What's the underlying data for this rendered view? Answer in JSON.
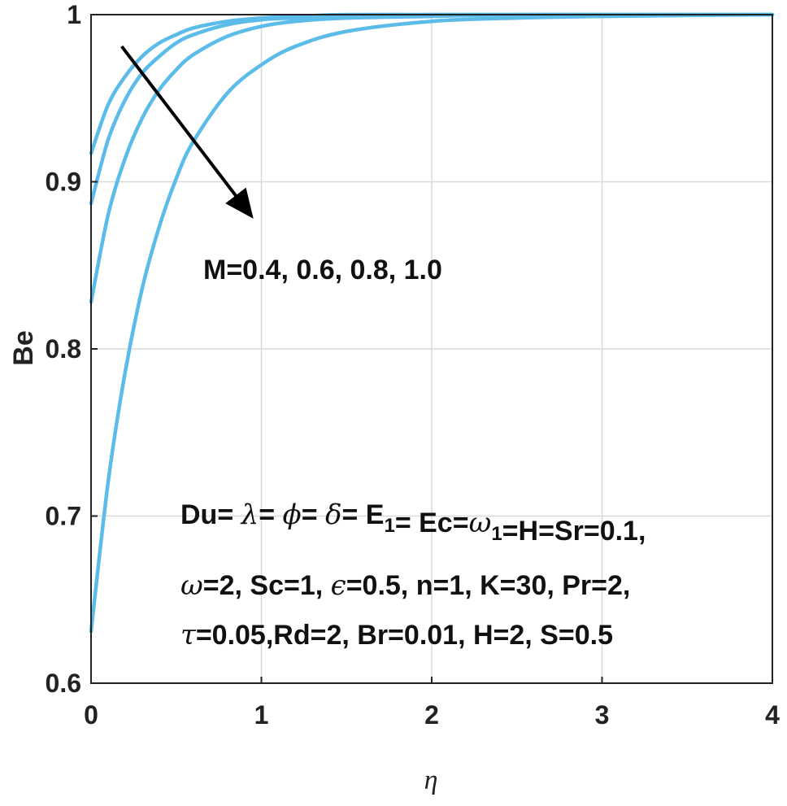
{
  "colors": {
    "curve": "#5bbcea",
    "grid": "#d9d9d9",
    "axis": "#222222",
    "arrow": "#000000"
  },
  "chart_data": {
    "type": "line",
    "title": "",
    "xlabel": "η",
    "ylabel": "Be",
    "xlim": [
      0,
      4
    ],
    "ylim": [
      0.6,
      1.0
    ],
    "xticks": [
      0,
      1,
      2,
      3,
      4
    ],
    "xtick_labels": [
      "0",
      "1",
      "2",
      "3",
      "4"
    ],
    "yticks": [
      0.6,
      0.7,
      0.8,
      0.9,
      1.0
    ],
    "ytick_labels": [
      "0.6",
      "0.7",
      "0.8",
      "0.9",
      "1"
    ],
    "grid": true,
    "x": [
      0,
      0.1,
      0.2,
      0.3,
      0.4,
      0.5,
      0.6,
      0.8,
      1.0,
      1.2,
      1.5,
      2.0,
      2.5,
      3.0,
      4.0
    ],
    "series": [
      {
        "values": [
          0.917,
          0.946,
          0.963,
          0.975,
          0.983,
          0.988,
          0.992,
          0.996,
          0.998,
          0.999,
          1.0,
          1.0,
          1.0,
          1.0,
          1.0
        ]
      },
      {
        "values": [
          0.887,
          0.925,
          0.949,
          0.965,
          0.975,
          0.983,
          0.988,
          0.994,
          0.997,
          0.998,
          0.999,
          1.0,
          1.0,
          1.0,
          1.0
        ]
      },
      {
        "values": [
          0.828,
          0.88,
          0.914,
          0.938,
          0.955,
          0.967,
          0.976,
          0.987,
          0.993,
          0.996,
          0.998,
          0.999,
          1.0,
          1.0,
          1.0
        ]
      },
      {
        "values": [
          0.631,
          0.72,
          0.786,
          0.836,
          0.873,
          0.902,
          0.924,
          0.953,
          0.97,
          0.981,
          0.99,
          0.996,
          0.998,
          0.999,
          1.0
        ]
      }
    ],
    "annotations": {
      "parameter_label": "M=0.4, 0.6, 0.8, 1.0",
      "arrow": {
        "from": [
          0.18,
          0.981
        ],
        "to": [
          0.93,
          0.881
        ]
      },
      "params_line1": [
        {
          "t": "Du= ",
          "s": "n"
        },
        {
          "t": "λ",
          "s": "i"
        },
        {
          "t": "= ",
          "s": "n"
        },
        {
          "t": "ϕ",
          "s": "i"
        },
        {
          "t": "= ",
          "s": "n"
        },
        {
          "t": "δ",
          "s": "i"
        },
        {
          "t": "= E",
          "s": "n"
        },
        {
          "t": "1",
          "s": "sub"
        },
        {
          "t": "= Ec=",
          "s": "n"
        },
        {
          "t": "ω",
          "s": "i"
        },
        {
          "t": "1",
          "s": "sub"
        },
        {
          "t": "=H=Sr=0.1,",
          "s": "n"
        }
      ],
      "params_line2": [
        {
          "t": "ω",
          "s": "i"
        },
        {
          "t": "=2, Sc=1, ",
          "s": "n"
        },
        {
          "t": "ϵ",
          "s": "i"
        },
        {
          "t": "=0.5, n=1, K=30, Pr=2,",
          "s": "n"
        }
      ],
      "params_line3": [
        {
          "t": "τ",
          "s": "i"
        },
        {
          "t": "=0.05,Rd=2, Br=0.01,  H=2, S=0.5",
          "s": "n"
        }
      ]
    }
  }
}
